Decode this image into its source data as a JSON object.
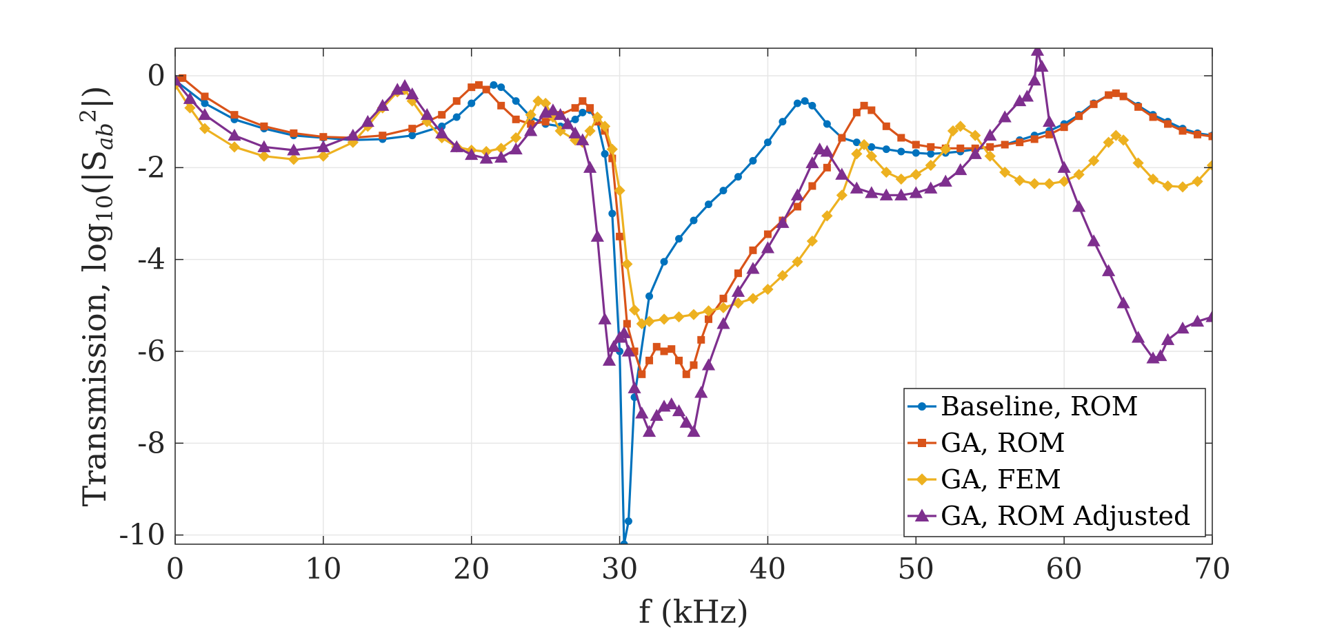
{
  "chart_data": {
    "type": "line",
    "title": "",
    "xlabel": "f (kHz)",
    "ylabel_parts": {
      "prefix": "Transmission, log",
      "log_base": "10",
      "open": "(|S",
      "subscript": "ab",
      "superscript": "2",
      "close": "|)"
    },
    "xlim": [
      0,
      70
    ],
    "ylim": [
      -10.2,
      0.6
    ],
    "xticks": [
      0,
      10,
      20,
      30,
      40,
      50,
      60,
      70
    ],
    "yticks": [
      0,
      -2,
      -4,
      -6,
      -8,
      -10
    ],
    "xtick_labels": [
      "0",
      "10",
      "20",
      "30",
      "40",
      "50",
      "60",
      "70"
    ],
    "ytick_labels": [
      "0",
      "-2",
      "-4",
      "-6",
      "-8",
      "-10"
    ],
    "grid": true,
    "legend_position": "bottom-right",
    "series": [
      {
        "name": "Baseline, ROM",
        "color": "#0072BD",
        "marker": "circle",
        "x": [
          0,
          2,
          4,
          6,
          8,
          10,
          12,
          14,
          16,
          18,
          19,
          20,
          21,
          21.5,
          22,
          23,
          24,
          25,
          26,
          27,
          27.5,
          28,
          28.5,
          29,
          29.5,
          30,
          30.3,
          30.6,
          31,
          32,
          33,
          34,
          35,
          36,
          37,
          38,
          39,
          40,
          41,
          42,
          42.5,
          43,
          44,
          45,
          46,
          47,
          48,
          49,
          50,
          51,
          52,
          53,
          54,
          55,
          56,
          57,
          58,
          59,
          60,
          61,
          62,
          63,
          63.5,
          64,
          65,
          66,
          67,
          68,
          69,
          70
        ],
        "y": [
          -0.1,
          -0.6,
          -0.95,
          -1.15,
          -1.3,
          -1.35,
          -1.4,
          -1.38,
          -1.3,
          -1.1,
          -0.9,
          -0.6,
          -0.3,
          -0.2,
          -0.25,
          -0.55,
          -0.9,
          -1.05,
          -1.1,
          -0.95,
          -0.8,
          -0.75,
          -1.0,
          -1.7,
          -3.0,
          -6.0,
          -10.2,
          -9.7,
          -7.0,
          -4.8,
          -4.05,
          -3.55,
          -3.15,
          -2.8,
          -2.5,
          -2.2,
          -1.85,
          -1.45,
          -1.0,
          -0.6,
          -0.55,
          -0.65,
          -1.05,
          -1.35,
          -1.45,
          -1.55,
          -1.6,
          -1.65,
          -1.68,
          -1.7,
          -1.68,
          -1.65,
          -1.6,
          -1.55,
          -1.5,
          -1.4,
          -1.3,
          -1.2,
          -1.05,
          -0.85,
          -0.6,
          -0.42,
          -0.38,
          -0.45,
          -0.65,
          -0.85,
          -1.0,
          -1.15,
          -1.25,
          -1.3
        ]
      },
      {
        "name": "GA, ROM",
        "color": "#D95319",
        "marker": "square",
        "x": [
          0,
          0.5,
          2,
          4,
          6,
          8,
          10,
          12,
          14,
          16,
          18,
          19,
          20,
          20.5,
          21,
          22,
          23,
          24,
          25,
          26,
          27,
          27.5,
          28,
          28.5,
          29,
          29.5,
          30,
          30.5,
          31,
          31.5,
          32,
          32.5,
          33,
          33.5,
          34,
          34.5,
          35,
          35.5,
          36,
          37,
          38,
          39,
          40,
          41,
          42,
          43,
          44,
          45,
          46,
          46.5,
          47,
          48,
          49,
          50,
          51,
          52,
          53,
          54,
          55,
          56,
          57,
          58,
          59,
          60,
          61,
          62,
          63,
          63.5,
          64,
          65,
          66,
          67,
          68,
          69,
          70
        ],
        "y": [
          -0.1,
          -0.05,
          -0.45,
          -0.85,
          -1.1,
          -1.25,
          -1.33,
          -1.35,
          -1.3,
          -1.15,
          -0.85,
          -0.55,
          -0.25,
          -0.2,
          -0.3,
          -0.65,
          -0.95,
          -1.05,
          -1.0,
          -0.85,
          -0.7,
          -0.55,
          -0.7,
          -1.0,
          -1.2,
          -1.8,
          -3.5,
          -5.4,
          -6.0,
          -6.5,
          -6.2,
          -5.9,
          -6.0,
          -5.95,
          -6.2,
          -6.5,
          -6.3,
          -5.75,
          -5.3,
          -4.85,
          -4.3,
          -3.8,
          -3.45,
          -3.15,
          -2.85,
          -2.4,
          -2.0,
          -1.35,
          -0.8,
          -0.65,
          -0.75,
          -1.1,
          -1.35,
          -1.5,
          -1.55,
          -1.58,
          -1.58,
          -1.58,
          -1.55,
          -1.5,
          -1.45,
          -1.38,
          -1.28,
          -1.12,
          -0.88,
          -0.62,
          -0.42,
          -0.38,
          -0.45,
          -0.68,
          -0.9,
          -1.05,
          -1.2,
          -1.28,
          -1.32
        ]
      },
      {
        "name": "GA, FEM",
        "color": "#EDB120",
        "marker": "diamond",
        "x": [
          0,
          1,
          2,
          4,
          6,
          8,
          10,
          12,
          13,
          14,
          15,
          15.5,
          16,
          17,
          18,
          19,
          20,
          21,
          22,
          23,
          24,
          24.5,
          25,
          25.5,
          26,
          27,
          27.5,
          28,
          28.5,
          29,
          29.5,
          30,
          30.5,
          31,
          31.5,
          32,
          33,
          34,
          35,
          36,
          37,
          38,
          39,
          40,
          41,
          42,
          43,
          44,
          45,
          46,
          46.5,
          47,
          48,
          49,
          50,
          51,
          52,
          52.5,
          53,
          54,
          55,
          56,
          57,
          58,
          59,
          60,
          61,
          62,
          63,
          63.5,
          64,
          65,
          66,
          67,
          68,
          69,
          70
        ],
        "y": [
          -0.2,
          -0.7,
          -1.15,
          -1.55,
          -1.75,
          -1.82,
          -1.75,
          -1.45,
          -1.1,
          -0.7,
          -0.35,
          -0.3,
          -0.55,
          -1.0,
          -1.35,
          -1.55,
          -1.62,
          -1.65,
          -1.58,
          -1.35,
          -0.85,
          -0.55,
          -0.6,
          -0.9,
          -1.2,
          -1.4,
          -1.45,
          -1.2,
          -0.9,
          -1.1,
          -1.6,
          -2.5,
          -4.1,
          -5.1,
          -5.4,
          -5.35,
          -5.3,
          -5.25,
          -5.2,
          -5.12,
          -5.05,
          -4.95,
          -4.85,
          -4.65,
          -4.35,
          -4.05,
          -3.6,
          -3.05,
          -2.6,
          -1.7,
          -1.5,
          -1.75,
          -2.1,
          -2.25,
          -2.15,
          -1.95,
          -1.6,
          -1.2,
          -1.1,
          -1.3,
          -1.75,
          -2.1,
          -2.28,
          -2.35,
          -2.35,
          -2.3,
          -2.15,
          -1.85,
          -1.45,
          -1.3,
          -1.4,
          -1.9,
          -2.25,
          -2.4,
          -2.42,
          -2.3,
          -1.95
        ]
      },
      {
        "name": "GA, ROM Adjusted",
        "color": "#7E2F8E",
        "marker": "triangle",
        "x": [
          0,
          1,
          2,
          4,
          6,
          8,
          10,
          12,
          13,
          14,
          15,
          15.5,
          16,
          17,
          18,
          19,
          20,
          21,
          22,
          23,
          24,
          25,
          25.5,
          26,
          26.5,
          27,
          27.5,
          28,
          28.5,
          29,
          29.3,
          29.6,
          30,
          30.3,
          30.6,
          31,
          31.5,
          32,
          32.5,
          33,
          33.5,
          34,
          34.5,
          35,
          35.5,
          36,
          37,
          38,
          39,
          40,
          41,
          42,
          43,
          43.5,
          44,
          45,
          46,
          47,
          48,
          49,
          50,
          51,
          52,
          53,
          54,
          55,
          56,
          57,
          57.5,
          58,
          58.2,
          58.5,
          59,
          60,
          61,
          62,
          63,
          64,
          65,
          66,
          66.5,
          67,
          68,
          69,
          70
        ],
        "y": [
          -0.1,
          -0.5,
          -0.85,
          -1.3,
          -1.55,
          -1.62,
          -1.55,
          -1.3,
          -1.0,
          -0.65,
          -0.3,
          -0.22,
          -0.4,
          -0.85,
          -1.25,
          -1.55,
          -1.72,
          -1.8,
          -1.78,
          -1.6,
          -1.2,
          -0.8,
          -0.75,
          -0.85,
          -1.05,
          -1.25,
          -1.4,
          -2.0,
          -3.5,
          -5.3,
          -6.2,
          -5.9,
          -5.7,
          -5.6,
          -6.0,
          -6.8,
          -7.35,
          -7.75,
          -7.4,
          -7.2,
          -7.15,
          -7.3,
          -7.55,
          -7.75,
          -6.9,
          -6.3,
          -5.4,
          -4.7,
          -4.2,
          -3.75,
          -3.2,
          -2.6,
          -1.9,
          -1.6,
          -1.65,
          -2.15,
          -2.45,
          -2.55,
          -2.6,
          -2.6,
          -2.55,
          -2.45,
          -2.3,
          -2.05,
          -1.7,
          -1.3,
          -0.9,
          -0.55,
          -0.45,
          -0.1,
          0.55,
          0.2,
          -1.0,
          -2.0,
          -2.85,
          -3.6,
          -4.25,
          -4.95,
          -5.7,
          -6.15,
          -6.1,
          -5.75,
          -5.5,
          -5.35,
          -5.25
        ]
      }
    ]
  }
}
